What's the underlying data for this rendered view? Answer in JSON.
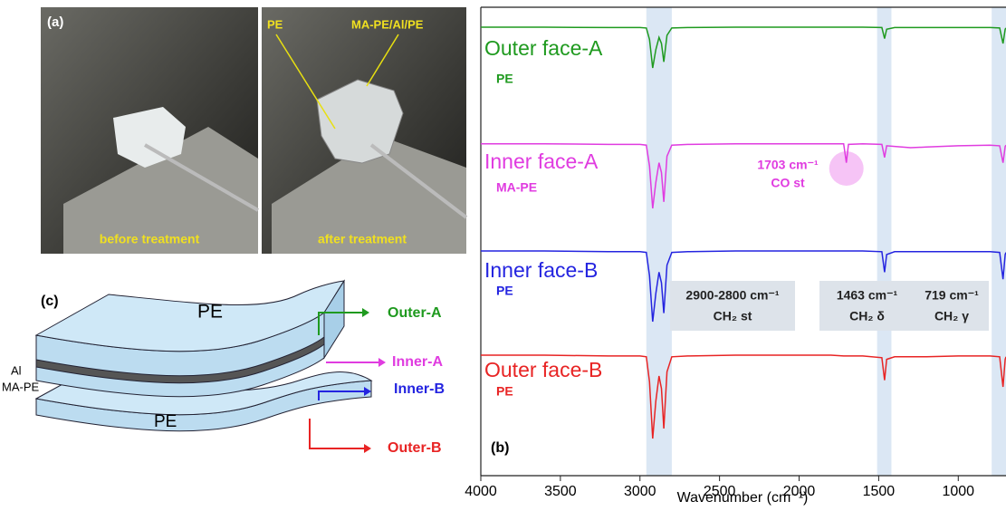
{
  "panel_a": {
    "label": "(a)",
    "before": "before treatment",
    "after": "after treatment",
    "arrow_pe": "PE",
    "arrow_laminate": "MA-PE/Al/PE"
  },
  "panel_c": {
    "label": "(c)",
    "top_layer": "PE",
    "al_layer": "Al",
    "mape_layer": "MA-PE",
    "bottom_layer": "PE",
    "outer_a": "Outer-A",
    "inner_a": "Inner-A",
    "inner_b": "Inner-B",
    "outer_b": "Outer-B"
  },
  "chart_data": {
    "type": "line",
    "panel_label": "(b)",
    "x_label": "Wavenumber (cm⁻¹)",
    "x": [
      4000,
      3600,
      3200,
      3000,
      2960,
      2940,
      2920,
      2900,
      2880,
      2865,
      2850,
      2830,
      2800,
      2700,
      2400,
      2000,
      1800,
      1720,
      1703,
      1690,
      1600,
      1480,
      1463,
      1450,
      1400,
      1300,
      1200,
      1000,
      800,
      740,
      719,
      705,
      700
    ],
    "series": [
      {
        "name": "Outer face-A",
        "sample": "PE",
        "color": "#1f9a1f",
        "values": [
          100,
          100,
          99,
          99,
          98,
          70,
          0,
          45,
          75,
          60,
          15,
          80,
          98,
          99,
          100,
          100,
          100,
          100,
          100,
          100,
          100,
          99,
          72,
          95,
          99,
          99,
          99,
          99,
          99,
          98,
          60,
          95,
          98
        ]
      },
      {
        "name": "Inner face-A",
        "sample": "MA-PE",
        "color": "#e03ce0",
        "values": [
          99,
          99,
          98,
          98,
          97,
          65,
          0,
          40,
          70,
          55,
          10,
          80,
          97,
          98,
          99,
          99,
          99,
          99,
          70,
          98,
          99,
          98,
          78,
          96,
          95,
          93,
          94,
          96,
          97,
          96,
          70,
          95,
          97
        ]
      },
      {
        "name": "Inner face-B",
        "sample": "PE",
        "color": "#2424e0",
        "values": [
          100,
          100,
          99,
          99,
          98,
          65,
          0,
          40,
          70,
          55,
          12,
          80,
          98,
          99,
          100,
          100,
          100,
          100,
          100,
          100,
          100,
          99,
          70,
          95,
          99,
          99,
          99,
          99,
          99,
          98,
          60,
          95,
          98
        ]
      },
      {
        "name": "Outer face-B",
        "sample": "PE",
        "color": "#e82424",
        "values": [
          100,
          100,
          99,
          99,
          98,
          68,
          0,
          45,
          75,
          60,
          12,
          80,
          98,
          99,
          100,
          100,
          100,
          99,
          99,
          99,
          99,
          97,
          70,
          95,
          98,
          98,
          98,
          99,
          99,
          98,
          62,
          95,
          98
        ]
      }
    ],
    "xlim": [
      4000,
      700
    ],
    "xticks": [
      4000,
      3500,
      3000,
      2500,
      2000,
      1500,
      1000
    ],
    "highlight_bands": [
      [
        2960,
        2800
      ],
      [
        1510,
        1420
      ],
      [
        790,
        700
      ]
    ],
    "highlight_color": "#dbe7f4",
    "annotations": {
      "co_peak": "1703 cm⁻¹",
      "co_assign": "CO st",
      "st_range": "2900-2800 cm⁻¹",
      "st_assign": "CH₂ st",
      "delta_peak": "1463 cm⁻¹",
      "delta_assign": "CH₂ δ",
      "gamma_peak": "719 cm⁻¹",
      "gamma_assign": "CH₂ γ"
    }
  }
}
